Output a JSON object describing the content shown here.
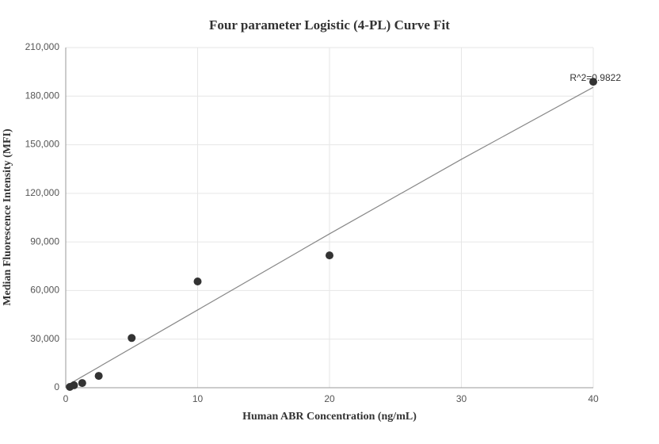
{
  "chart_data": {
    "type": "scatter",
    "title": "Four parameter Logistic (4-PL) Curve Fit",
    "x_label": "Human ABR Concentration (ng/mL)",
    "y_label": "Median Fluorescence Intensity (MFI)",
    "annotation": "R^2=0.9822",
    "xlim": [
      0,
      40
    ],
    "ylim": [
      0,
      210000
    ],
    "xticks": [
      0,
      10,
      20,
      30,
      40
    ],
    "yticks": [
      0,
      {
        "value": 30000,
        "label": "30,000"
      },
      {
        "value": 60000,
        "label": "60,000"
      },
      {
        "value": 90000,
        "label": "90,000"
      },
      {
        "value": 120000,
        "label": "120,000"
      },
      {
        "value": 150000,
        "label": "150,000"
      },
      {
        "value": 180000,
        "label": "180,000"
      },
      {
        "value": 210000,
        "label": "210,000"
      }
    ],
    "grid": true,
    "points": {
      "color": "#333333",
      "x": [
        0.3125,
        0.625,
        1.25,
        2.5,
        5,
        10,
        20,
        40
      ],
      "values": [
        500,
        1500,
        2900,
        7300,
        30700,
        65600,
        81700,
        188900
      ]
    },
    "fit": {
      "color": "#888888",
      "x": [
        0,
        10,
        20,
        30,
        40
      ],
      "values": [
        1000,
        48000,
        95000,
        141000,
        185500
      ]
    }
  }
}
